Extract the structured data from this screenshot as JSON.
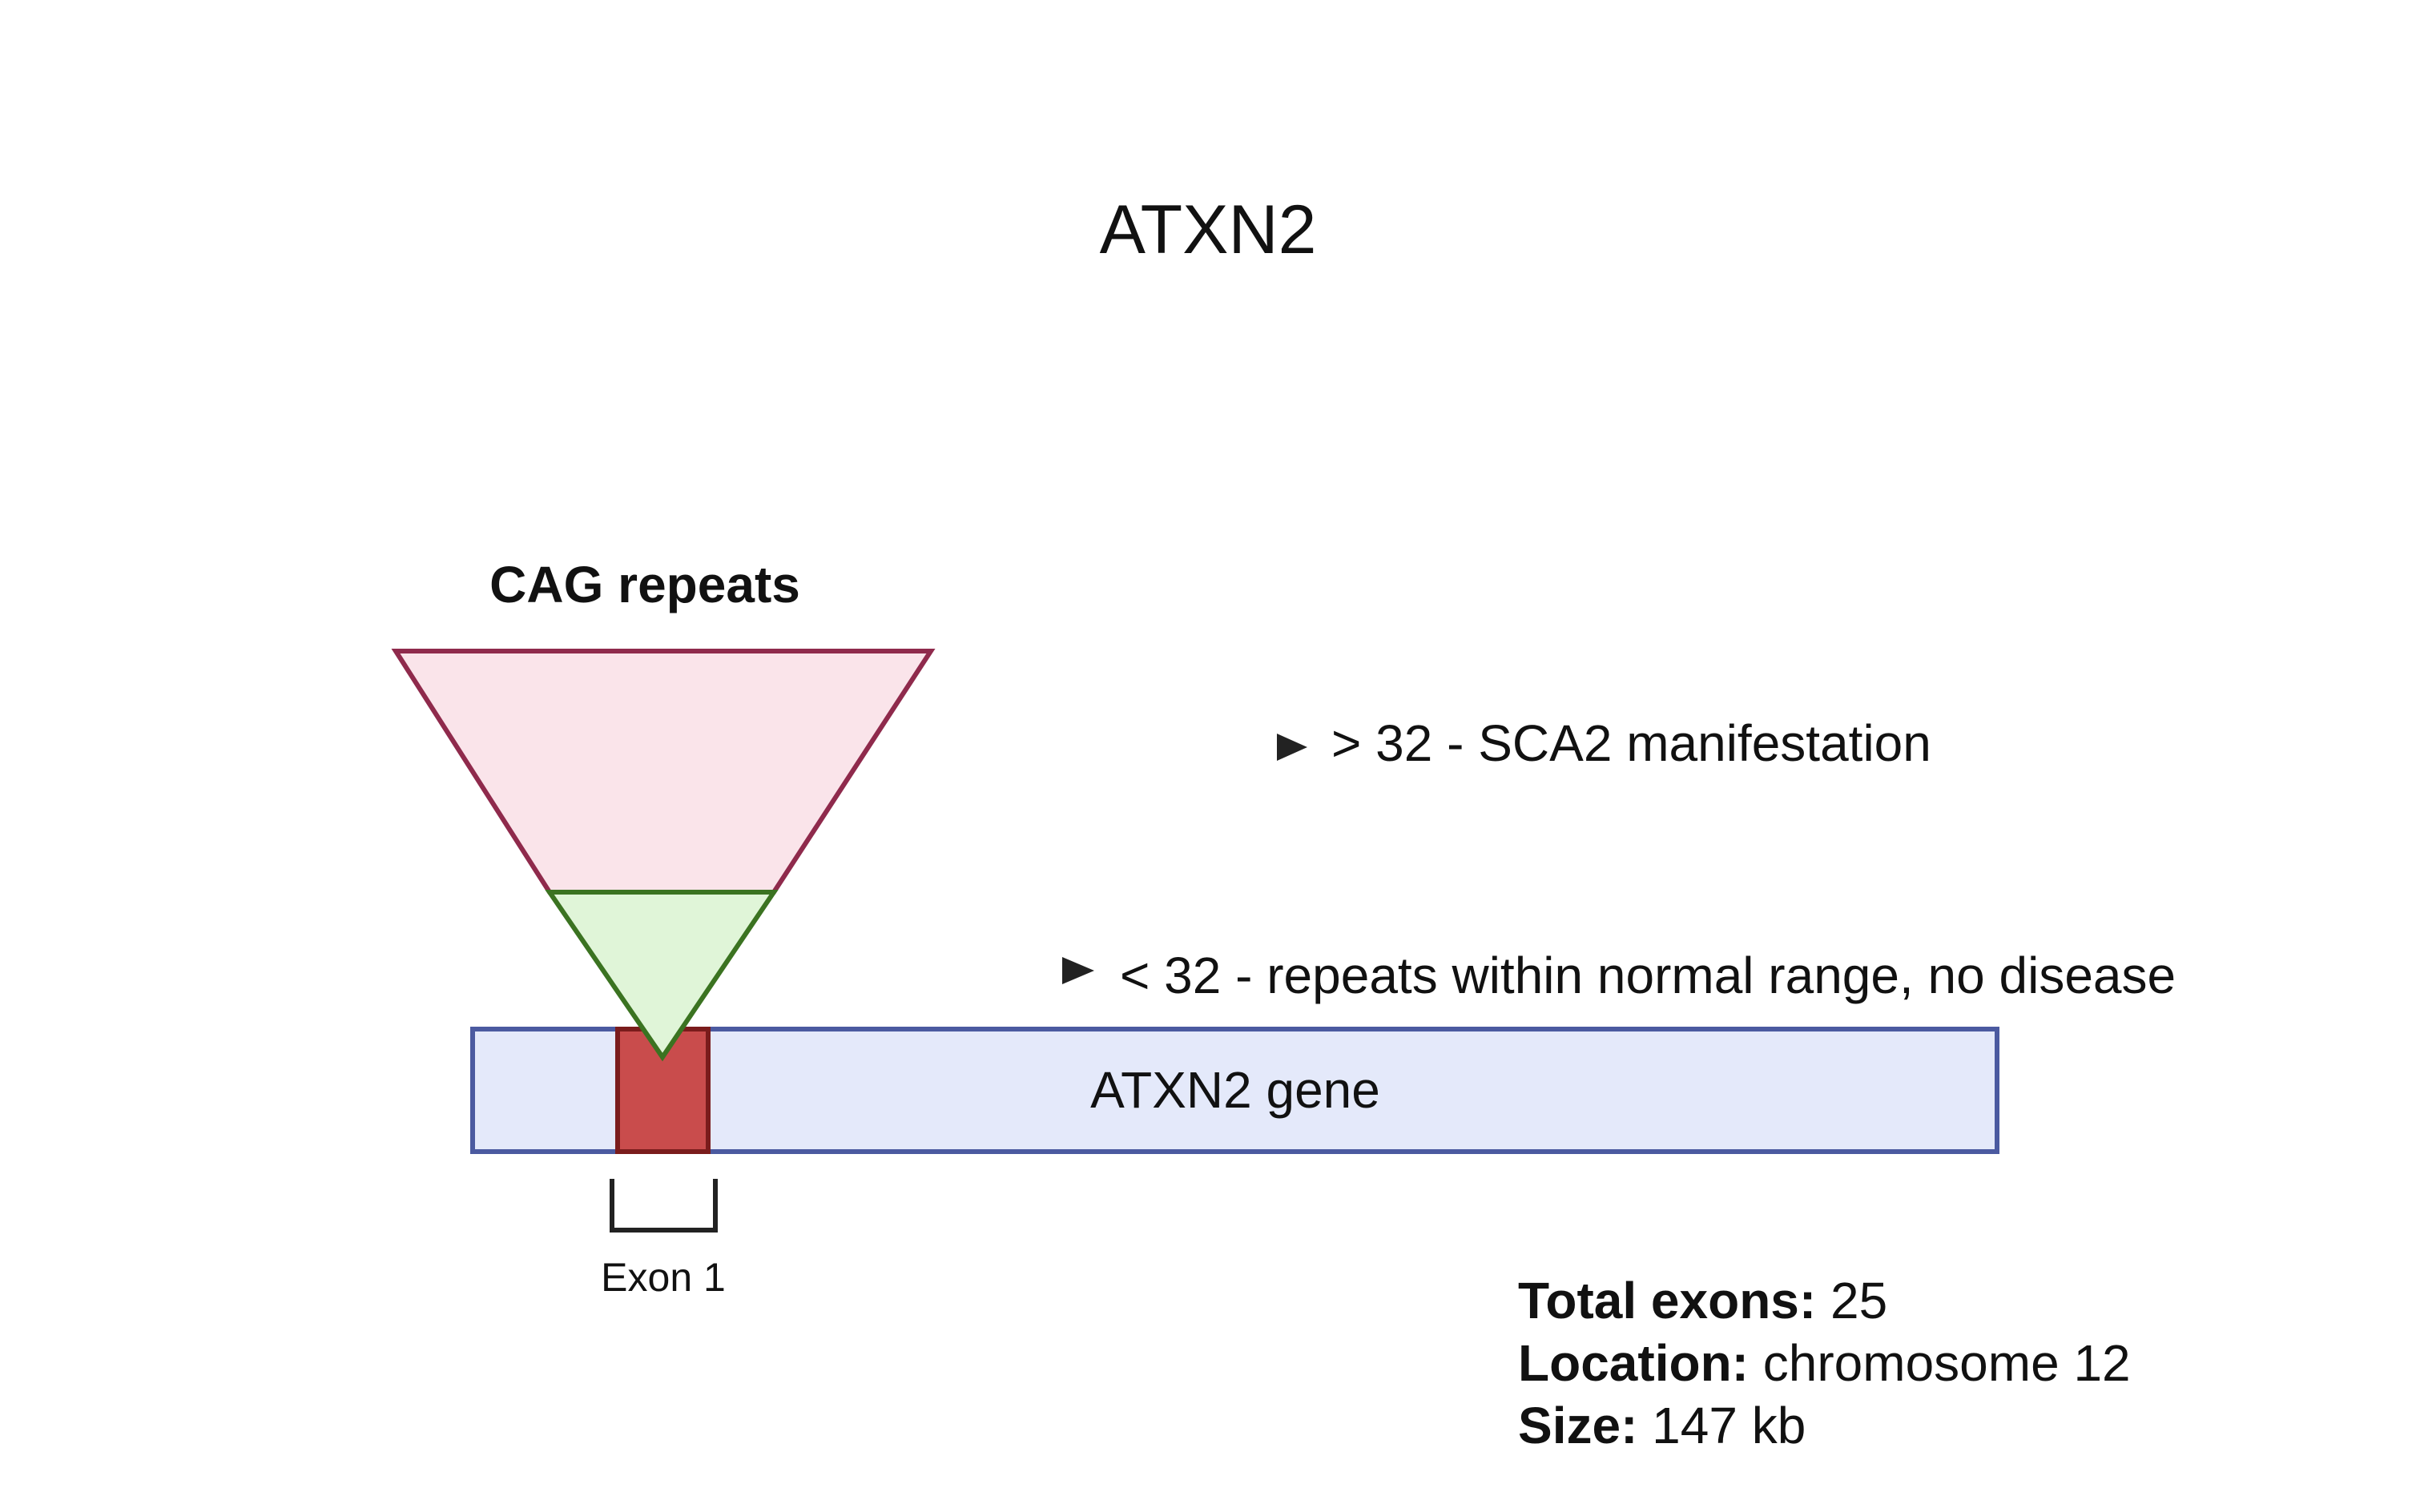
{
  "title": "ATXN2",
  "repeats_label": "CAG repeats",
  "annotations": {
    "expanded": "> 32 - SCA2 manifestation",
    "normal": "< 32 - repeats within normal range, no disease"
  },
  "gene": {
    "label": "ATXN2 gene",
    "exon_label": "Exon 1"
  },
  "info": {
    "total_exons_label": "Total exons:",
    "total_exons_value": " 25",
    "location_label": "Location:",
    "location_value": " chromosome 12",
    "size_label": "Size:",
    "size_value": " 147 kb"
  },
  "colors": {
    "expanded_fill": "#fae4ea",
    "expanded_stroke": "#8f2a4c",
    "normal_fill": "#e0f5d8",
    "normal_stroke": "#3b7321",
    "gene_fill": "#e4e9fa",
    "gene_stroke": "#4b5aa0",
    "exon_fill": "#c94c4c",
    "exon_stroke": "#7a1c1c",
    "arrow": "#222222"
  }
}
